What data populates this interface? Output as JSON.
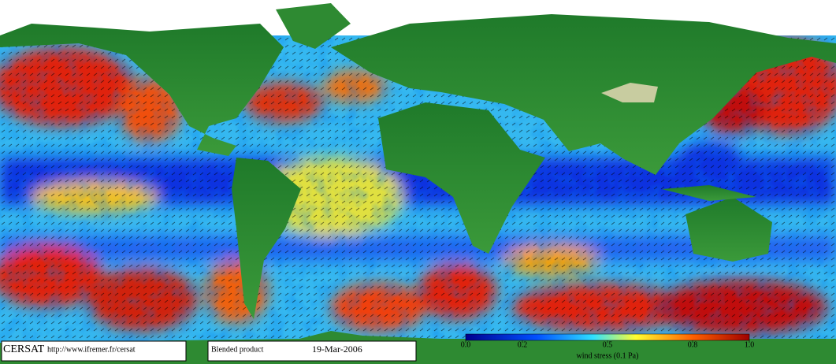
{
  "footer": {
    "logo": "CERSAT",
    "url": "http://www.ifremer.fr/cersat",
    "product": "Blended product",
    "date": "19-Mar-2006"
  },
  "colorbar": {
    "label": "wind stress (0.1 Pa)",
    "range": [
      0,
      1
    ],
    "ticks": [
      {
        "value": 0,
        "label": "0.0"
      },
      0.2,
      0.5,
      0.8,
      {
        "value": 1,
        "label": "1.0"
      }
    ]
  }
}
